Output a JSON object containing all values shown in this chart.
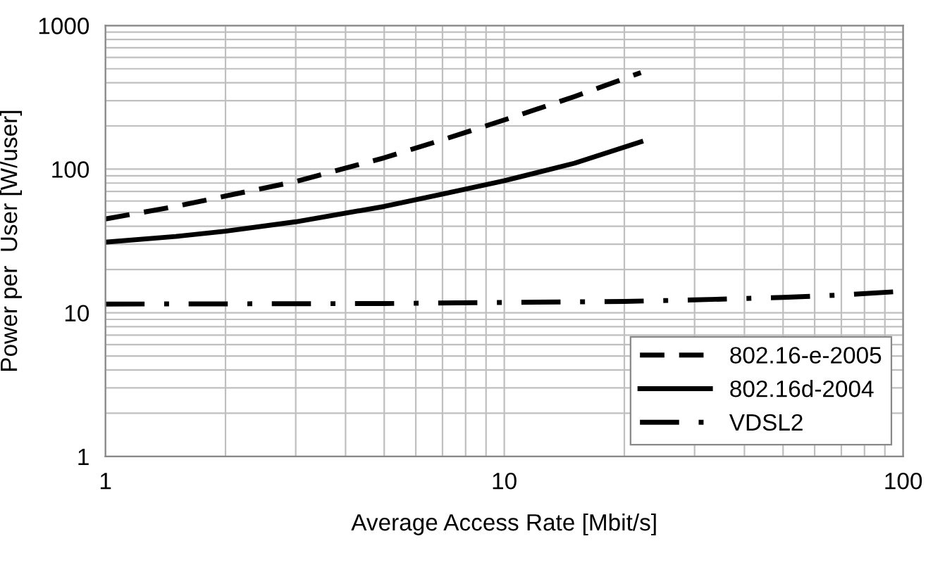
{
  "chart_data": {
    "type": "line",
    "xlabel": "Average Access Rate [Mbit/s]",
    "ylabel": "Power per  User [W/user]",
    "log": "xy",
    "xlim": [
      1,
      100
    ],
    "ylim": [
      1,
      1000
    ],
    "xticks": [
      1,
      10,
      100
    ],
    "yticks": [
      1,
      10,
      100,
      1000
    ],
    "grid": true,
    "legend": "bottom right",
    "marker": "none",
    "series": [
      {
        "name": "802.16-e-2005",
        "color": "#000000",
        "line_style": "dashed",
        "x": [
          1,
          1.5,
          2,
          3,
          5,
          7,
          10,
          15,
          22
        ],
        "values": [
          45,
          55,
          65,
          82,
          120,
          160,
          220,
          320,
          470
        ]
      },
      {
        "name": "802.16d-2004",
        "color": "#000000",
        "line_style": "solid",
        "x": [
          1,
          1.5,
          2,
          3,
          5,
          7,
          10,
          15,
          22
        ],
        "values": [
          31,
          34,
          37,
          43,
          55,
          67,
          83,
          110,
          155
        ]
      },
      {
        "name": "VDSL2",
        "color": "#000000",
        "line_style": "dashdot",
        "x": [
          1,
          5,
          10,
          20,
          30,
          50,
          70,
          95
        ],
        "values": [
          11.5,
          11.6,
          11.8,
          12,
          12.3,
          12.8,
          13.3,
          14
        ]
      }
    ]
  }
}
